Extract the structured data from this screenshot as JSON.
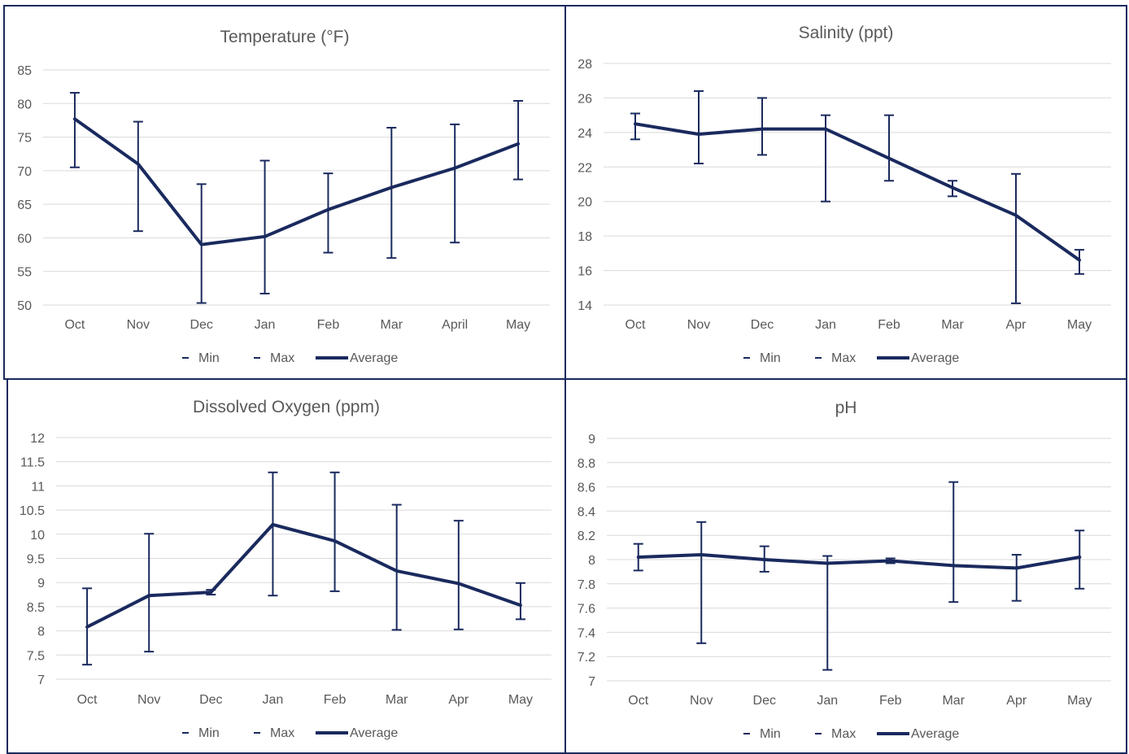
{
  "colors": {
    "series": "#1a2a5e",
    "grid": "#d9d9d9",
    "text": "#595959",
    "border": "#1a2a5e"
  },
  "chart_data": [
    {
      "type": "line",
      "title": "Temperature (°F)",
      "categories": [
        "Oct",
        "Nov",
        "Dec",
        "Jan",
        "Feb",
        "Mar",
        "April",
        "May"
      ],
      "ylim": [
        50,
        85
      ],
      "yticks": [
        "50",
        "55",
        "60",
        "65",
        "70",
        "75",
        "80",
        "85"
      ],
      "legend": [
        "Min",
        "Max",
        "Average"
      ],
      "legend_position": "bottom",
      "grid": true,
      "series": [
        {
          "name": "Min",
          "values": [
            70.5,
            61,
            50.3,
            51.7,
            57.8,
            57,
            59.3,
            68.7
          ]
        },
        {
          "name": "Max",
          "values": [
            81.6,
            77.3,
            68,
            71.5,
            69.6,
            76.4,
            76.9,
            80.4
          ]
        },
        {
          "name": "Average",
          "values": [
            77.7,
            71,
            59,
            60.2,
            64.2,
            67.5,
            70.4,
            74
          ]
        }
      ]
    },
    {
      "type": "line",
      "title": "Salinity (ppt)",
      "categories": [
        "Oct",
        "Nov",
        "Dec",
        "Jan",
        "Feb",
        "Mar",
        "Apr",
        "May"
      ],
      "ylim": [
        14,
        28
      ],
      "yticks": [
        "14",
        "16",
        "18",
        "20",
        "22",
        "24",
        "26",
        "28"
      ],
      "legend": [
        "Min",
        "Max",
        "Average"
      ],
      "legend_position": "bottom",
      "grid": true,
      "series": [
        {
          "name": "Min",
          "values": [
            23.6,
            22.2,
            22.7,
            20,
            21.2,
            20.3,
            14.1,
            15.8
          ]
        },
        {
          "name": "Max",
          "values": [
            25.1,
            26.4,
            26,
            25,
            25,
            21.2,
            21.6,
            17.2
          ]
        },
        {
          "name": "Average",
          "values": [
            24.5,
            23.9,
            24.2,
            24.2,
            22.5,
            20.8,
            19.2,
            16.6
          ]
        }
      ]
    },
    {
      "type": "line",
      "title": "Dissolved Oxygen (ppm)",
      "categories": [
        "Oct",
        "Nov",
        "Dec",
        "Jan",
        "Feb",
        "Mar",
        "Apr",
        "May"
      ],
      "ylim": [
        7,
        12
      ],
      "yticks": [
        "7",
        "7.5",
        "8",
        "8.5",
        "9",
        "9.5",
        "10",
        "10.5",
        "11",
        "11.5",
        "12"
      ],
      "legend": [
        "Min",
        "Max",
        "Average"
      ],
      "legend_position": "bottom",
      "grid": true,
      "series": [
        {
          "name": "Min",
          "values": [
            7.3,
            7.57,
            8.75,
            8.73,
            8.82,
            8.02,
            8.03,
            8.24
          ]
        },
        {
          "name": "Max",
          "values": [
            8.88,
            10.01,
            8.85,
            11.28,
            11.28,
            10.61,
            10.28,
            8.99
          ]
        },
        {
          "name": "Average",
          "values": [
            8.08,
            8.73,
            8.8,
            10.2,
            9.86,
            9.24,
            8.98,
            8.53
          ]
        }
      ]
    },
    {
      "type": "line",
      "title": "pH",
      "categories": [
        "Oct",
        "Nov",
        "Dec",
        "Jan",
        "Feb",
        "Mar",
        "Apr",
        "May"
      ],
      "ylim": [
        7,
        9
      ],
      "yticks": [
        "7",
        "7.2",
        "7.4",
        "7.6",
        "7.8",
        "8",
        "8.2",
        "8.4",
        "8.6",
        "8.8",
        "9"
      ],
      "legend": [
        "Min",
        "Max",
        "Average"
      ],
      "legend_position": "bottom",
      "grid": true,
      "series": [
        {
          "name": "Min",
          "values": [
            7.91,
            7.31,
            7.9,
            7.09,
            7.97,
            7.65,
            7.66,
            7.76
          ]
        },
        {
          "name": "Max",
          "values": [
            8.13,
            8.31,
            8.11,
            8.03,
            8.01,
            8.64,
            8.04,
            8.24
          ]
        },
        {
          "name": "Average",
          "values": [
            8.02,
            8.04,
            8.0,
            7.97,
            7.99,
            7.95,
            7.93,
            8.02
          ]
        }
      ]
    }
  ]
}
